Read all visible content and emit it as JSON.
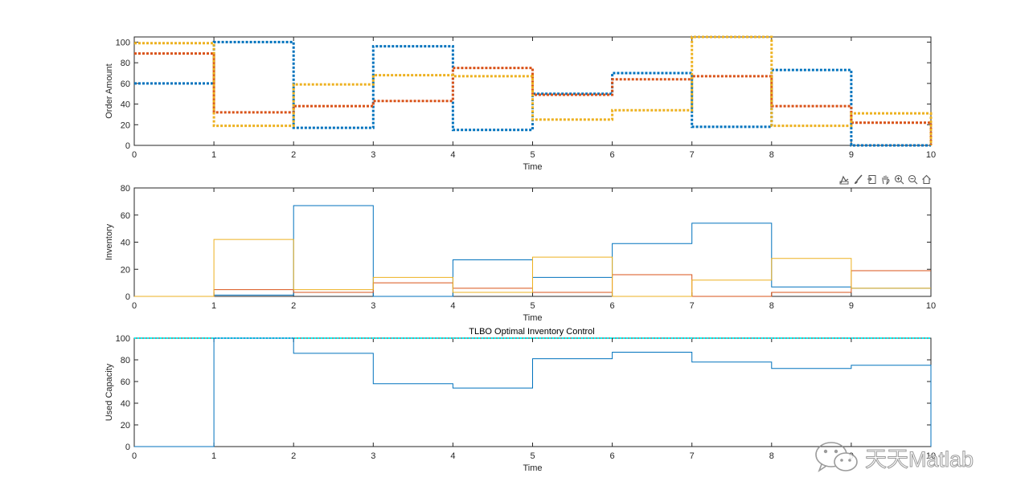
{
  "chart_data": [
    {
      "type": "line",
      "step": true,
      "line_style": "dotted",
      "title": "",
      "xlabel": "Time",
      "ylabel": "Order Amount",
      "xlim": [
        0,
        10
      ],
      "ylim": [
        0,
        105
      ],
      "xticks": [
        0,
        1,
        2,
        3,
        4,
        5,
        6,
        7,
        8,
        9,
        10
      ],
      "yticks": [
        0,
        20,
        40,
        60,
        80,
        100
      ],
      "x": [
        0,
        1,
        2,
        3,
        4,
        5,
        6,
        7,
        8,
        9,
        10
      ],
      "series": [
        {
          "color": "#0072BD",
          "values": [
            60,
            100,
            17,
            96,
            15,
            50,
            70,
            18,
            73,
            0,
            0
          ]
        },
        {
          "color": "#D95319",
          "values": [
            89,
            32,
            38,
            43,
            75,
            49,
            64,
            67,
            38,
            22,
            0
          ]
        },
        {
          "color": "#EDB120",
          "values": [
            99,
            19,
            59,
            68,
            67,
            25,
            34,
            105,
            19,
            31,
            0
          ]
        }
      ]
    },
    {
      "type": "line",
      "step": true,
      "line_style": "solid",
      "title": "",
      "xlabel": "Time",
      "ylabel": "Inventory",
      "xlim": [
        0,
        10
      ],
      "ylim": [
        0,
        80
      ],
      "xticks": [
        0,
        1,
        2,
        3,
        4,
        5,
        6,
        7,
        8,
        9,
        10
      ],
      "yticks": [
        0,
        20,
        40,
        60,
        80
      ],
      "x": [
        0,
        1,
        2,
        3,
        4,
        5,
        6,
        7,
        8,
        9,
        10
      ],
      "series": [
        {
          "color": "#0072BD",
          "values": [
            0,
            1,
            67,
            0,
            27,
            14,
            39,
            54,
            7,
            6,
            6
          ]
        },
        {
          "color": "#D95319",
          "values": [
            0,
            5,
            3,
            10,
            6,
            3,
            16,
            0,
            3,
            19,
            19
          ]
        },
        {
          "color": "#EDB120",
          "values": [
            0,
            42,
            5,
            14,
            3,
            29,
            0,
            12,
            28,
            6,
            6
          ]
        }
      ]
    },
    {
      "type": "line",
      "step": true,
      "line_style": "solid",
      "title": "TLBO Optimal Inventory Control",
      "xlabel": "Time",
      "ylabel": "Used Capacity",
      "xlim": [
        0,
        10
      ],
      "ylim": [
        0,
        100
      ],
      "xticks": [
        0,
        1,
        2,
        3,
        4,
        5,
        6,
        7,
        8,
        9,
        10
      ],
      "yticks": [
        0,
        20,
        40,
        60,
        80,
        100
      ],
      "x": [
        0,
        1,
        2,
        3,
        4,
        5,
        6,
        7,
        8,
        9,
        10
      ],
      "series": [
        {
          "color": "#0072BD",
          "values": [
            0,
            100,
            86,
            58,
            54,
            81,
            87,
            78,
            72,
            75,
            0
          ]
        }
      ],
      "reference_line": {
        "color": "#00FFFF",
        "style": "dotted",
        "value": 100
      }
    }
  ],
  "toolbar": {
    "icons": [
      "data-tips-icon",
      "brush-icon",
      "export-icon",
      "pan-icon",
      "zoom-in-icon",
      "zoom-out-icon",
      "home-icon"
    ]
  },
  "watermark": {
    "text": "天天Matlab",
    "icon": "wechat-icon"
  }
}
